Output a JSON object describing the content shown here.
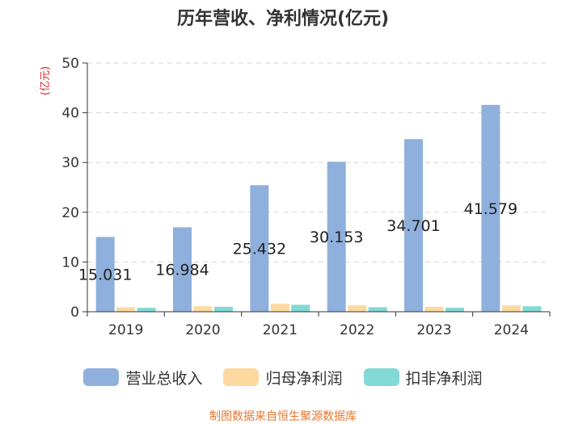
{
  "chart_data": {
    "type": "bar",
    "title": "历年营收、净利情况(亿元)",
    "ylabel": "(亿元)",
    "xlabel": "",
    "ylim": [
      0,
      50
    ],
    "yticks": [
      0,
      10,
      20,
      30,
      40,
      50
    ],
    "grid": true,
    "legend_position": "bottom",
    "categories": [
      "2019",
      "2020",
      "2021",
      "2022",
      "2023",
      "2024"
    ],
    "series": [
      {
        "name": "营业总收入",
        "color": "#8fb0dc",
        "values": [
          15.031,
          16.984,
          25.432,
          30.153,
          34.701,
          41.579
        ],
        "labels": [
          "15.031",
          "16.984",
          "25.432",
          "30.153",
          "34.701",
          "41.579"
        ]
      },
      {
        "name": "归母净利润",
        "color": "#fdd9a0",
        "values": [
          0.9,
          1.1,
          1.6,
          1.3,
          1.0,
          1.3
        ]
      },
      {
        "name": "扣非净利润",
        "color": "#82d9d6",
        "values": [
          0.8,
          1.0,
          1.4,
          0.9,
          0.8,
          1.1
        ]
      }
    ],
    "source": "制图数据来自恒生聚源数据库",
    "source_color": "#e8762b",
    "ylabel_color": "#e02020"
  }
}
